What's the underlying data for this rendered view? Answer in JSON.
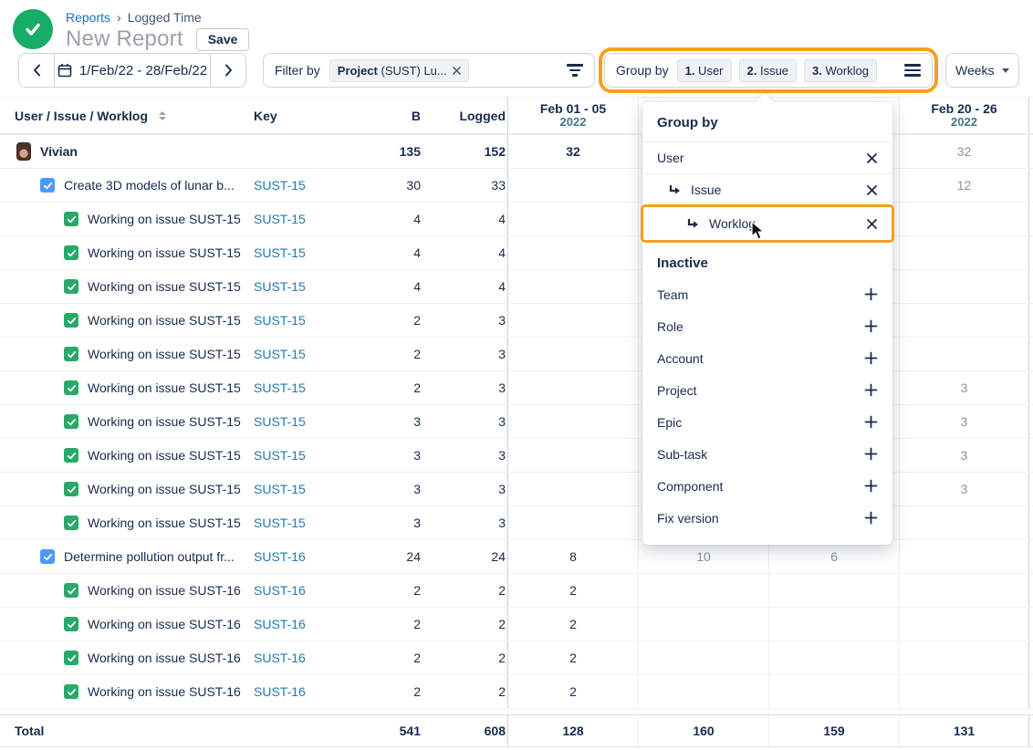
{
  "colors": {
    "accent_orange": "#F5A11B",
    "logo_green": "#17AD66",
    "link_blue": "#1A6FC4",
    "key_link": "#2479B2",
    "issue_checkbox": "#4C9AFF",
    "worklog_checkbox": "#28A968",
    "header_year_teal": "#44778A",
    "muted_value": "#8993A4"
  },
  "header": {
    "logo_icon": "check-icon",
    "breadcrumb": {
      "reports": "Reports",
      "separator": "›",
      "current": "Logged Time"
    },
    "title": "New Report",
    "save_label": "Save"
  },
  "toolbar": {
    "date_range": "1/Feb/22 - 28/Feb/22",
    "filter": {
      "label": "Filter by",
      "chip_bold": "Project",
      "chip_rest": "(SUST) Lu..."
    },
    "group_by": {
      "label": "Group by",
      "chips": [
        {
          "num": "1.",
          "label": "User"
        },
        {
          "num": "2.",
          "label": "Issue"
        },
        {
          "num": "3.",
          "label": "Worklog"
        }
      ]
    },
    "period": "Weeks"
  },
  "table": {
    "columns": {
      "name": "User / Issue / Worklog",
      "key": "Key",
      "b": "B",
      "logged": "Logged"
    },
    "week_headers": [
      {
        "range": "Feb 01 - 05",
        "year": "2022"
      },
      {
        "range": "",
        "year": ""
      },
      {
        "range": "",
        "year": ""
      },
      {
        "range": "Feb 20 - 26",
        "year": "2022"
      }
    ],
    "rows": [
      {
        "type": "user",
        "name": "Vivian",
        "key": "",
        "b": "135",
        "logged": "152",
        "weeks": [
          "32",
          "",
          "",
          "32"
        ]
      },
      {
        "type": "issue",
        "name": "Create 3D models of lunar b...",
        "key": "SUST-15",
        "b": "30",
        "logged": "33",
        "weeks": [
          "",
          "",
          "",
          "12"
        ]
      },
      {
        "type": "worklog",
        "name": "Working on issue SUST-15",
        "key": "SUST-15",
        "b": "4",
        "logged": "4",
        "weeks": [
          "",
          "",
          "",
          ""
        ]
      },
      {
        "type": "worklog",
        "name": "Working on issue SUST-15",
        "key": "SUST-15",
        "b": "4",
        "logged": "4",
        "weeks": [
          "",
          "",
          "",
          ""
        ]
      },
      {
        "type": "worklog",
        "name": "Working on issue SUST-15",
        "key": "SUST-15",
        "b": "4",
        "logged": "4",
        "weeks": [
          "",
          "",
          "",
          ""
        ]
      },
      {
        "type": "worklog",
        "name": "Working on issue SUST-15",
        "key": "SUST-15",
        "b": "2",
        "logged": "3",
        "weeks": [
          "",
          "",
          "",
          ""
        ]
      },
      {
        "type": "worklog",
        "name": "Working on issue SUST-15",
        "key": "SUST-15",
        "b": "2",
        "logged": "3",
        "weeks": [
          "",
          "",
          "",
          ""
        ]
      },
      {
        "type": "worklog",
        "name": "Working on issue SUST-15",
        "key": "SUST-15",
        "b": "2",
        "logged": "3",
        "weeks": [
          "",
          "",
          "",
          "3"
        ]
      },
      {
        "type": "worklog",
        "name": "Working on issue SUST-15",
        "key": "SUST-15",
        "b": "3",
        "logged": "3",
        "weeks": [
          "",
          "",
          "",
          "3"
        ]
      },
      {
        "type": "worklog",
        "name": "Working on issue SUST-15",
        "key": "SUST-15",
        "b": "3",
        "logged": "3",
        "weeks": [
          "",
          "",
          "",
          "3"
        ]
      },
      {
        "type": "worklog",
        "name": "Working on issue SUST-15",
        "key": "SUST-15",
        "b": "3",
        "logged": "3",
        "weeks": [
          "",
          "",
          "",
          "3"
        ]
      },
      {
        "type": "worklog",
        "name": "Working on issue SUST-15",
        "key": "SUST-15",
        "b": "3",
        "logged": "3",
        "weeks": [
          "",
          "",
          "",
          ""
        ]
      },
      {
        "type": "issue",
        "name": "Determine pollution output fr...",
        "key": "SUST-16",
        "b": "24",
        "logged": "24",
        "weeks": [
          "8",
          "10",
          "6",
          ""
        ]
      },
      {
        "type": "worklog",
        "name": "Working on issue SUST-16",
        "key": "SUST-16",
        "b": "2",
        "logged": "2",
        "weeks": [
          "2",
          "",
          "",
          ""
        ]
      },
      {
        "type": "worklog",
        "name": "Working on issue SUST-16",
        "key": "SUST-16",
        "b": "2",
        "logged": "2",
        "weeks": [
          "2",
          "",
          "",
          ""
        ]
      },
      {
        "type": "worklog",
        "name": "Working on issue SUST-16",
        "key": "SUST-16",
        "b": "2",
        "logged": "2",
        "weeks": [
          "2",
          "",
          "",
          ""
        ]
      },
      {
        "type": "worklog",
        "name": "Working on issue SUST-16",
        "key": "SUST-16",
        "b": "2",
        "logged": "2",
        "weeks": [
          "2",
          "",
          "",
          ""
        ]
      }
    ],
    "total": {
      "label": "Total",
      "b": "541",
      "logged": "608",
      "weeks": [
        "128",
        "160",
        "159",
        "131"
      ]
    }
  },
  "popup": {
    "title": "Group by",
    "active": [
      {
        "label": "User",
        "level": 0,
        "highlighted": false
      },
      {
        "label": "Issue",
        "level": 1,
        "highlighted": false
      },
      {
        "label": "Worklog",
        "level": 2,
        "highlighted": true
      }
    ],
    "inactive_title": "Inactive",
    "inactive": [
      "Team",
      "Role",
      "Account",
      "Project",
      "Epic",
      "Sub-task",
      "Component",
      "Fix version"
    ]
  }
}
